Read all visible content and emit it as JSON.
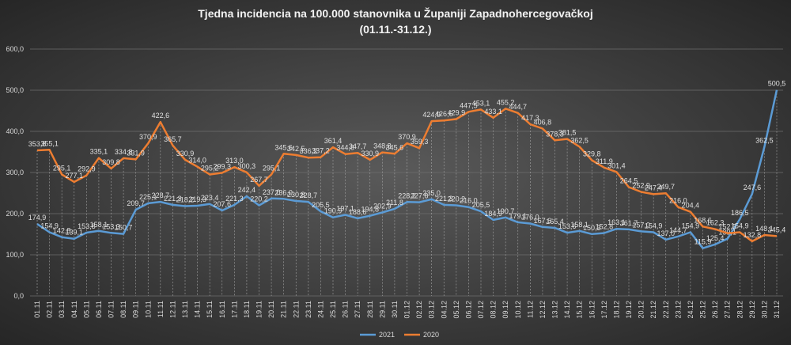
{
  "chart_data": {
    "type": "line",
    "title": "Tjedna  incidencia  na  100.000  stanovnika  u  Županiji  Zapadnohercegovačkoj",
    "subtitle": "(01.11.-31.12.)",
    "categories": [
      "01.11",
      "02.11",
      "03.11",
      "04.11",
      "05.11",
      "06.11",
      "07.11",
      "08.11",
      "09.11",
      "10.11",
      "11.11",
      "12.11",
      "13.11",
      "14.11",
      "15.11",
      "16.11",
      "17.11",
      "18.11",
      "19.11",
      "20.11",
      "21.11",
      "22.11",
      "23.11",
      "24.11",
      "25.11",
      "26.11",
      "27.11",
      "28.11",
      "29.11",
      "30.11",
      "01.12",
      "02.12",
      "03.12",
      "04.12",
      "05.12",
      "06.12",
      "07.12",
      "08.12",
      "09.12",
      "10.12",
      "11.12",
      "12.12",
      "13.12",
      "14.12",
      "15.12",
      "16.12",
      "17.12",
      "18.12",
      "19.12",
      "20.12",
      "21.12",
      "22.12",
      "23.12",
      "24.12",
      "25.12",
      "26.12",
      "27.12",
      "28.12",
      "29.12",
      "30.12",
      "31.12"
    ],
    "series": [
      {
        "name": "2021",
        "color": "#5b9bd5",
        "values": [
          174.9,
          154.9,
          142.8,
          139.1,
          153.8,
          158.1,
          153.3,
          150.7,
          209.7,
          225.1,
          228.7,
          221.3,
          218.2,
          219.3,
          223.4,
          207.6,
          221.3,
          242.4,
          220.2,
          237.0,
          236.0,
          230.8,
          228.7,
          205.5,
          190.9,
          197.1,
          188.6,
          194.8,
          202.9,
          211.8,
          228.2,
          227.6,
          235.0,
          221.3,
          220.2,
          216.0,
          205.5,
          184.9,
          190.7,
          179.1,
          176.0,
          167.6,
          165.4,
          153.6,
          158.1,
          150.3,
          152.8,
          163.1,
          161.7,
          157.0,
          154.9,
          137.0,
          144.7,
          154.9,
          115.9,
          125.4,
          139.1,
          186.5,
          247.6,
          362.5,
          500.5
        ],
        "value_labels": [
          "174,9",
          "154,9",
          "142,8",
          "139,1",
          "153,8",
          "158,1",
          "153,3",
          "150,7",
          "209,7",
          "225,1",
          "228,7",
          "221,3",
          "218,2",
          "219,3",
          "223,4",
          "207,6",
          "221,3",
          "242,4",
          "220,2",
          "237,0",
          "236,0",
          "230,8",
          "228,7",
          "205,5",
          "190,9",
          "197,1",
          "188,6",
          "194,8",
          "202,9",
          "211,8",
          "228,2",
          "227,6",
          "235,0",
          "221,3",
          "220,2",
          "216,0",
          "205,5",
          "184,9",
          "190,7",
          "179,1",
          "176,0",
          "167,6",
          "165,4",
          "153,6",
          "158,1",
          "150,3",
          "152,8",
          "163,1",
          "161,7",
          "157,0",
          "154,9",
          "137,0",
          "144,7",
          "154,9",
          "115,9",
          "125,4",
          "139,1",
          "186,5",
          "247,6",
          "362,5",
          "500,5"
        ]
      },
      {
        "name": "2020",
        "color": "#ed7d31",
        "values": [
          353.8,
          355.1,
          295.1,
          277.1,
          292.9,
          335.1,
          309.8,
          334.8,
          331.9,
          370.9,
          422.6,
          365.7,
          330.9,
          314.0,
          295.2,
          299.3,
          313.0,
          300.3,
          267.7,
          295.1,
          345.6,
          342.5,
          336.2,
          337.2,
          361.4,
          344.8,
          347.7,
          330.9,
          348.8,
          345.6,
          370.9,
          359.3,
          424.9,
          426.6,
          429.9,
          447.5,
          453.1,
          433.1,
          455.2,
          444.7,
          417.3,
          406.8,
          378.3,
          381.5,
          362.5,
          329.8,
          311.9,
          301.4,
          264.5,
          252.9,
          247.4,
          249.7,
          216.0,
          204.4,
          168.6,
          162.3,
          152.5,
          154.9,
          132.8,
          148.1,
          145.4
        ],
        "value_labels": [
          "353,8",
          "355,1",
          "295,1",
          "277,1",
          "292,9",
          "335,1",
          "309,8",
          "334,8",
          "331,9",
          "370,9",
          "422,6",
          "365,7",
          "330,9",
          "314,0",
          "295,2",
          "299,3",
          "313,0",
          "300,3",
          "267,7",
          "295,1",
          "345,6",
          "342,5",
          "336,2",
          "337,2",
          "361,4",
          "344,8",
          "347,7",
          "330,9",
          "348,8",
          "345,6",
          "370,9",
          "359,3",
          "424,9",
          "426,6",
          "429,9",
          "447,5",
          "453,1",
          "433,1",
          "455,2",
          "444,7",
          "417,3",
          "406,8",
          "378,3",
          "381,5",
          "362,5",
          "329,8",
          "311,9",
          "301,4",
          "264,5",
          "252,9",
          "247,4",
          "249,7",
          "216,0",
          "204,4",
          "168,6",
          "162,3",
          "152,5",
          "154,9",
          "132,8",
          "148,1",
          "145,4"
        ]
      }
    ],
    "ylim": [
      0,
      600
    ],
    "yticks": [
      {
        "value": 0,
        "label": "0,0"
      },
      {
        "value": 100,
        "label": "100,0"
      },
      {
        "value": 200,
        "label": "200,0"
      },
      {
        "value": 300,
        "label": "300,0"
      },
      {
        "value": 400,
        "label": "400,0"
      },
      {
        "value": 500,
        "label": "500,0"
      },
      {
        "value": 600,
        "label": "600,0"
      }
    ],
    "grid": true,
    "legend": "bottom"
  }
}
